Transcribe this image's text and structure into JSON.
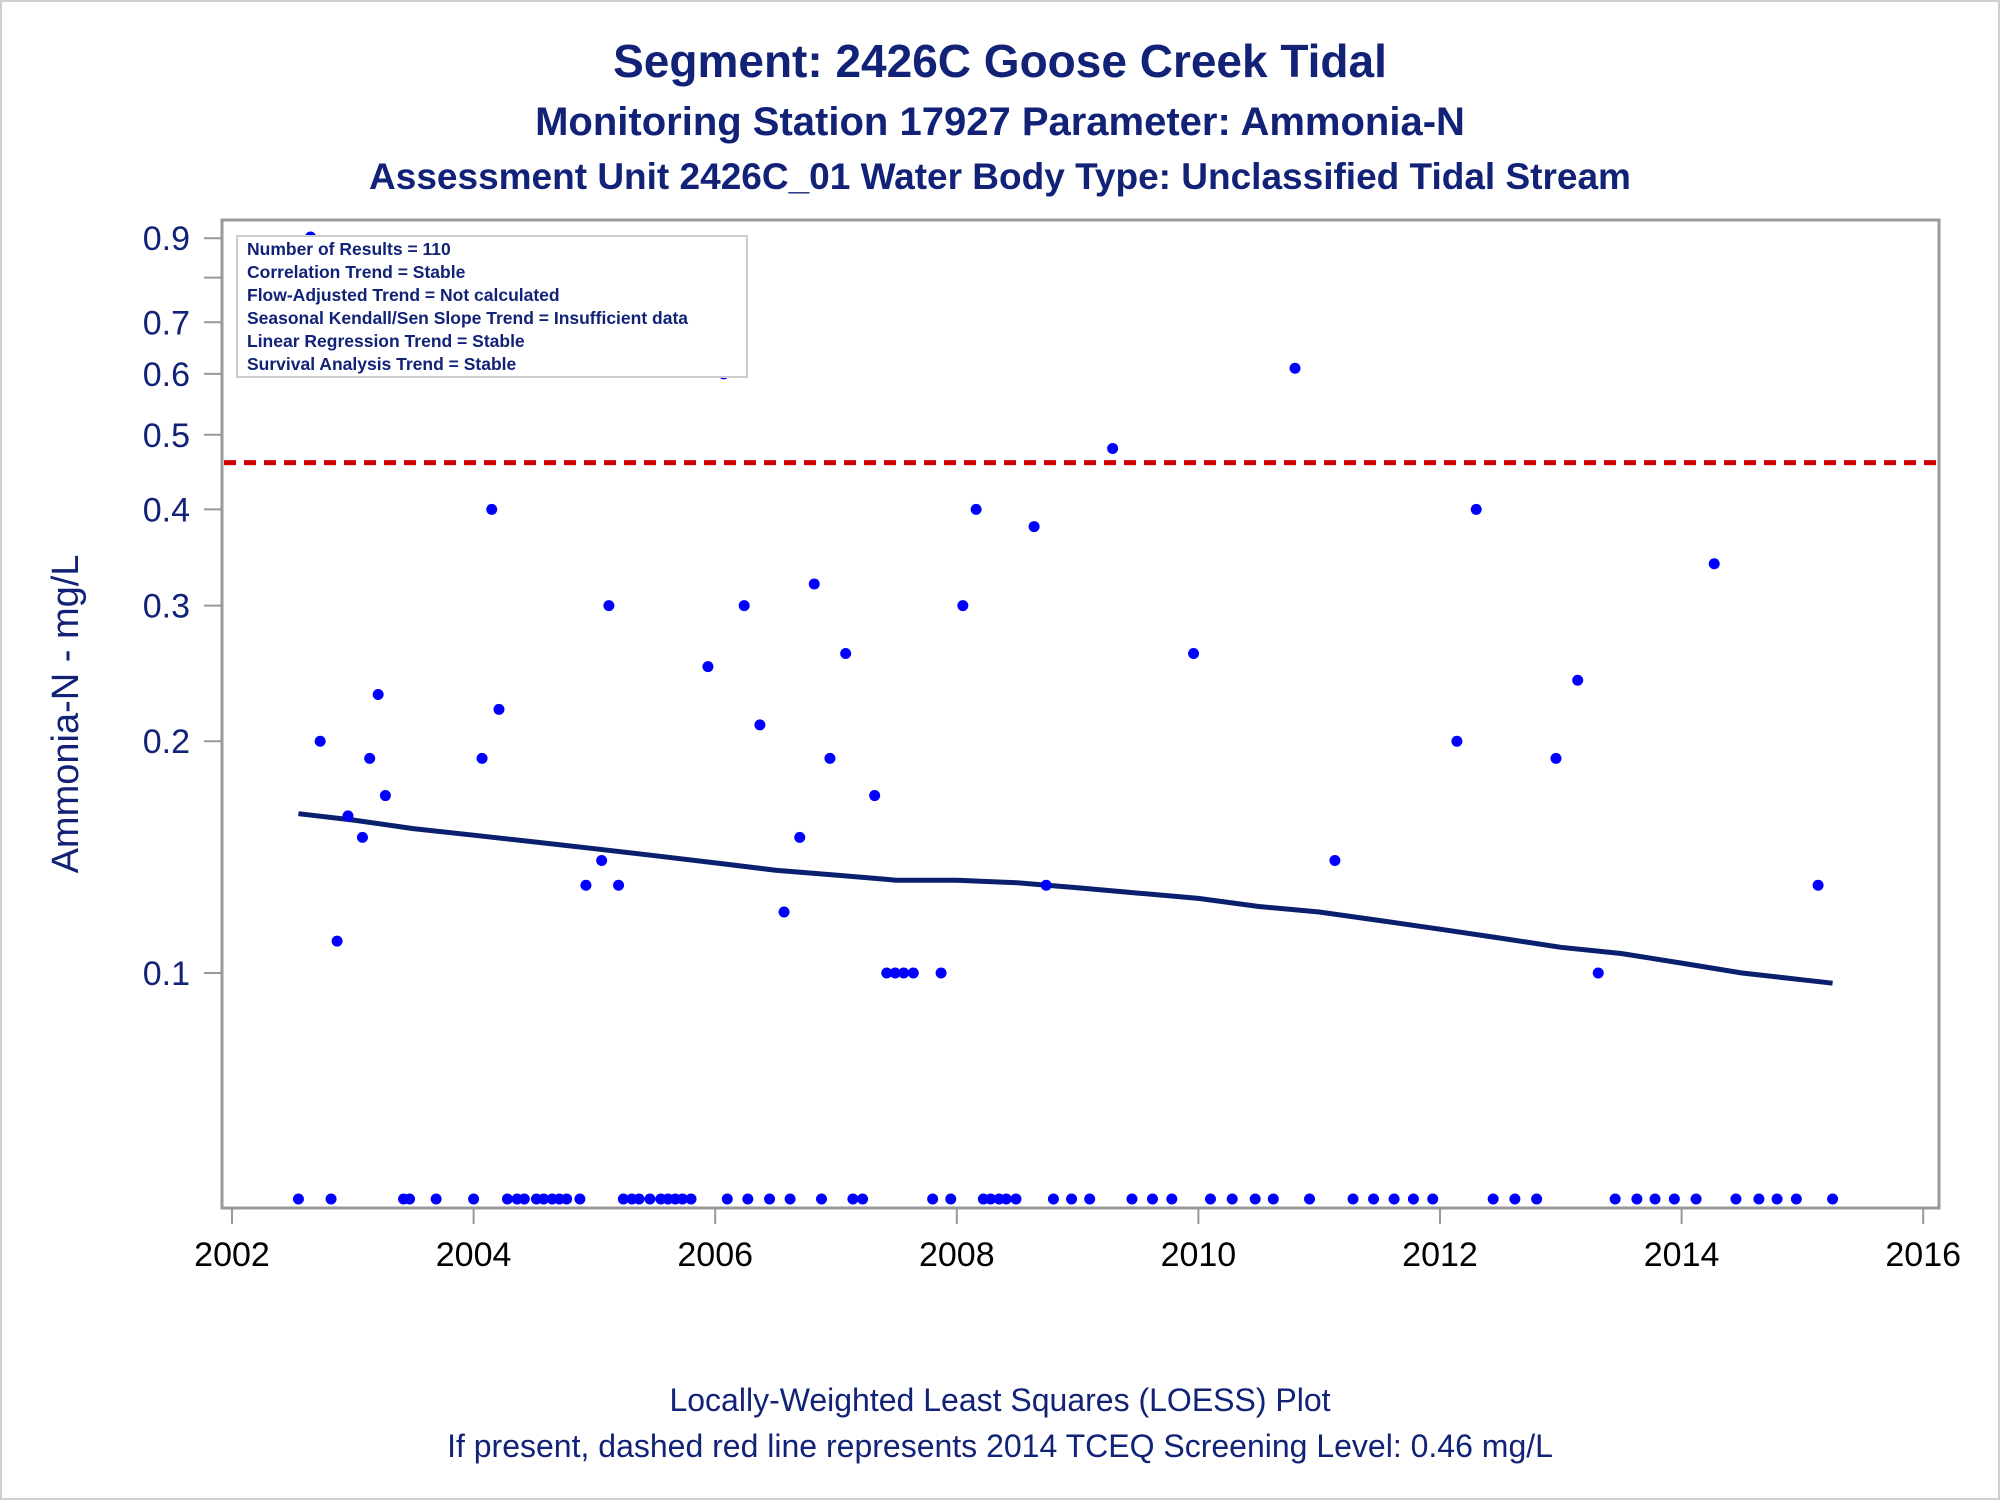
{
  "titles": {
    "line1": "Segment: 2426C  Goose Creek Tidal",
    "line2": "Monitoring Station 17927 Parameter: Ammonia-N",
    "line3": "Assessment Unit 2426C_01   Water Body Type: Unclassified Tidal Stream"
  },
  "footnotes": {
    "line1": "Locally-Weighted Least Squares (LOESS) Plot",
    "line2": "If present, dashed red line represents 2014 TCEQ Screening Level: 0.46 mg/L"
  },
  "colors": {
    "text": "#112277",
    "points": "#0000ff",
    "loess_line": "#0a1f6e",
    "screening_line": "#cc0000",
    "axis": "#999999"
  },
  "chart_data": {
    "type": "scatter",
    "ylabel": "Ammonia-N - mg/L",
    "xlabel": "",
    "y_scale": "log",
    "xlim": [
      2002,
      2016
    ],
    "ylim": [
      0.045,
      0.95
    ],
    "x_ticks": [
      2002,
      2004,
      2006,
      2008,
      2010,
      2012,
      2014,
      2016
    ],
    "y_ticks": [
      0.1,
      0.2,
      0.3,
      0.4,
      0.5,
      0.6,
      0.7,
      0.9
    ],
    "y_minor_ticks": [
      0.8
    ],
    "legend_box": {
      "position": "top-left",
      "lines": [
        "Number of Results = 110",
        "Correlation Trend = Stable",
        "Flow-Adjusted Trend = Not calculated",
        "Seasonal Kendall/Sen Slope Trend = Insufficient data",
        "Linear Regression Trend = Stable",
        "Survival Analysis Trend = Stable"
      ]
    },
    "screening_level": 0.46,
    "detected_points": [
      {
        "x": 2002.65,
        "y": 0.95
      },
      {
        "x": 2002.73,
        "y": 0.2
      },
      {
        "x": 2002.87,
        "y": 0.11
      },
      {
        "x": 2002.96,
        "y": 0.16
      },
      {
        "x": 2003.08,
        "y": 0.15
      },
      {
        "x": 2003.14,
        "y": 0.19
      },
      {
        "x": 2003.21,
        "y": 0.23
      },
      {
        "x": 2003.27,
        "y": 0.17
      },
      {
        "x": 2004.07,
        "y": 0.19
      },
      {
        "x": 2004.15,
        "y": 0.4
      },
      {
        "x": 2004.21,
        "y": 0.22
      },
      {
        "x": 2004.93,
        "y": 0.13
      },
      {
        "x": 2005.06,
        "y": 0.14
      },
      {
        "x": 2005.12,
        "y": 0.3
      },
      {
        "x": 2005.2,
        "y": 0.13
      },
      {
        "x": 2005.94,
        "y": 0.25
      },
      {
        "x": 2006.07,
        "y": 0.6
      },
      {
        "x": 2006.24,
        "y": 0.3
      },
      {
        "x": 2006.37,
        "y": 0.21
      },
      {
        "x": 2006.57,
        "y": 0.12
      },
      {
        "x": 2006.7,
        "y": 0.15
      },
      {
        "x": 2006.82,
        "y": 0.32
      },
      {
        "x": 2006.95,
        "y": 0.19
      },
      {
        "x": 2007.08,
        "y": 0.26
      },
      {
        "x": 2007.32,
        "y": 0.17
      },
      {
        "x": 2007.42,
        "y": 0.1
      },
      {
        "x": 2007.49,
        "y": 0.1
      },
      {
        "x": 2007.56,
        "y": 0.1
      },
      {
        "x": 2007.64,
        "y": 0.1
      },
      {
        "x": 2007.87,
        "y": 0.1
      },
      {
        "x": 2008.05,
        "y": 0.3
      },
      {
        "x": 2008.16,
        "y": 0.4
      },
      {
        "x": 2008.64,
        "y": 0.38
      },
      {
        "x": 2008.74,
        "y": 0.13
      },
      {
        "x": 2009.29,
        "y": 0.48
      },
      {
        "x": 2009.96,
        "y": 0.26
      },
      {
        "x": 2010.8,
        "y": 0.61
      },
      {
        "x": 2011.13,
        "y": 0.14
      },
      {
        "x": 2012.14,
        "y": 0.2
      },
      {
        "x": 2012.3,
        "y": 0.4
      },
      {
        "x": 2012.96,
        "y": 0.19
      },
      {
        "x": 2013.14,
        "y": 0.24
      },
      {
        "x": 2013.31,
        "y": 0.1
      },
      {
        "x": 2014.27,
        "y": 0.34
      },
      {
        "x": 2015.13,
        "y": 0.13
      }
    ],
    "baseline_points_x": [
      2002.55,
      2002.82,
      2003.42,
      2003.47,
      2003.69,
      2004.0,
      2004.28,
      2004.36,
      2004.42,
      2004.52,
      2004.58,
      2004.65,
      2004.71,
      2004.77,
      2004.88,
      2005.24,
      2005.31,
      2005.37,
      2005.46,
      2005.55,
      2005.61,
      2005.67,
      2005.73,
      2005.8,
      2006.1,
      2006.27,
      2006.45,
      2006.62,
      2006.88,
      2007.14,
      2007.22,
      2007.8,
      2007.95,
      2008.22,
      2008.28,
      2008.35,
      2008.41,
      2008.49,
      2008.8,
      2008.95,
      2009.1,
      2009.45,
      2009.62,
      2009.78,
      2010.1,
      2010.28,
      2010.47,
      2010.62,
      2010.92,
      2011.28,
      2011.45,
      2011.62,
      2011.78,
      2011.94,
      2012.44,
      2012.62,
      2012.8,
      2013.45,
      2013.63,
      2013.78,
      2013.94,
      2014.12,
      2014.45,
      2014.64,
      2014.79,
      2014.95,
      2015.25
    ],
    "loess_line": {
      "x": [
        2002.55,
        2003.0,
        2003.5,
        2004.0,
        2004.5,
        2005.0,
        2005.5,
        2006.0,
        2006.5,
        2007.0,
        2007.5,
        2008.0,
        2008.5,
        2009.0,
        2009.5,
        2010.0,
        2010.5,
        2011.0,
        2011.5,
        2012.0,
        2012.5,
        2013.0,
        2013.5,
        2014.0,
        2014.5,
        2015.0,
        2015.25
      ],
      "y": [
        0.161,
        0.158,
        0.154,
        0.151,
        0.148,
        0.145,
        0.142,
        0.139,
        0.136,
        0.134,
        0.132,
        0.132,
        0.131,
        0.129,
        0.127,
        0.125,
        0.122,
        0.12,
        0.117,
        0.114,
        0.111,
        0.108,
        0.106,
        0.103,
        0.1,
        0.098,
        0.097
      ]
    }
  }
}
